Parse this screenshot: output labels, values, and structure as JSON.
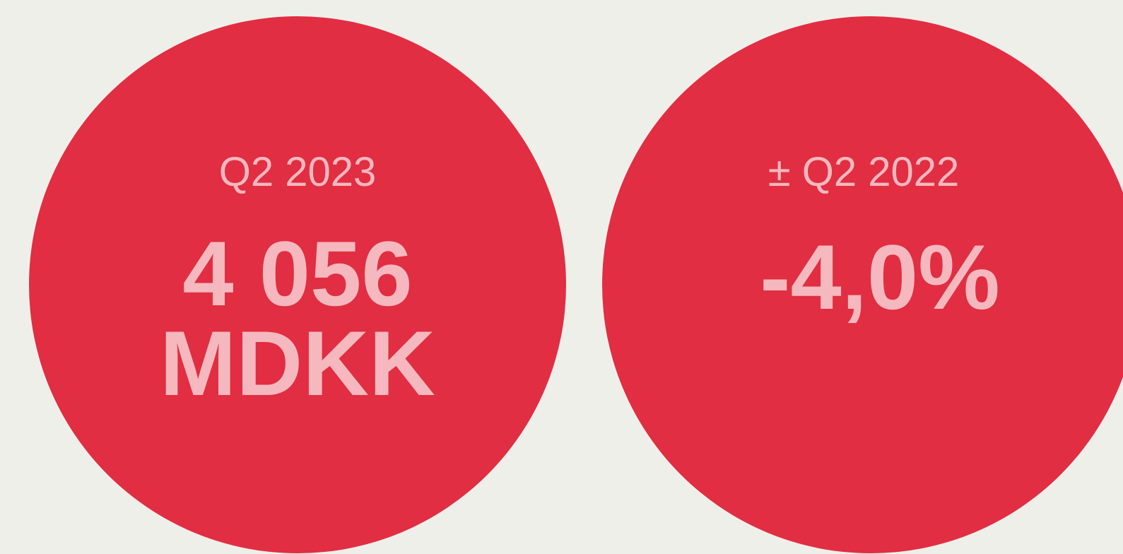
{
  "cards": [
    {
      "label": "Q2 2023",
      "value_lines": [
        "4 056",
        "MDKK"
      ]
    },
    {
      "label": "± Q2 2022",
      "value_lines": [
        "-4,0%"
      ]
    }
  ]
}
